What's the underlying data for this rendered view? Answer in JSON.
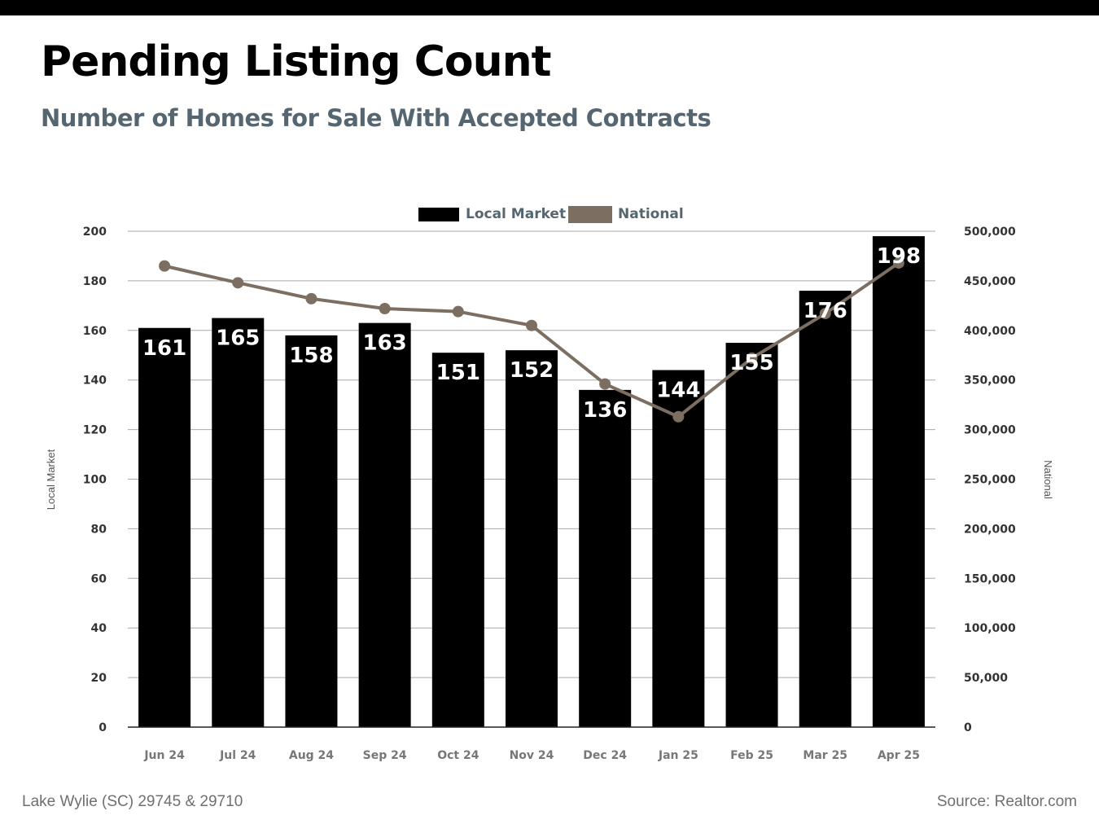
{
  "header": {
    "title": "Pending Listing Count",
    "subtitle": "Number of Homes for Sale With Accepted Contracts"
  },
  "footer": {
    "left": "Lake Wylie (SC) 29745 & 29710",
    "right": "Source: Realtor.com"
  },
  "colors": {
    "bars": "#000000",
    "line": "#7d6e62",
    "legend_text": "#566670",
    "grid": "#a9a9a9",
    "axis_text": "#333333"
  },
  "chart_data": {
    "type": "bar",
    "categories": [
      "Jun 24",
      "Jul 24",
      "Aug 24",
      "Sep 24",
      "Oct 24",
      "Nov 24",
      "Dec 24",
      "Jan 25",
      "Feb 25",
      "Mar 25",
      "Apr 25"
    ],
    "series": [
      {
        "name": "Local Market",
        "type": "bar",
        "axis": "left",
        "values": [
          161,
          165,
          158,
          163,
          151,
          152,
          136,
          144,
          155,
          176,
          198
        ],
        "data_labels": [
          "161",
          "165",
          "158",
          "163",
          "151",
          "152",
          "136",
          "144",
          "155",
          "176",
          "198"
        ]
      },
      {
        "name": "National",
        "type": "line",
        "axis": "right",
        "values": [
          465000,
          448000,
          432000,
          422000,
          419000,
          405000,
          346000,
          313000,
          372000,
          417000,
          468000
        ]
      }
    ],
    "ylabel": "Local Market",
    "y2label": "National",
    "ylim": [
      0,
      200
    ],
    "y2lim": [
      0,
      500000
    ],
    "y_ticks": [
      "0",
      "20",
      "40",
      "60",
      "80",
      "100",
      "120",
      "140",
      "160",
      "180",
      "200"
    ],
    "y2_ticks": [
      "0",
      "50,000",
      "100,000",
      "150,000",
      "200,000",
      "250,000",
      "300,000",
      "350,000",
      "400,000",
      "450,000",
      "500,000"
    ],
    "grid": true,
    "legend_position": "top-center"
  }
}
